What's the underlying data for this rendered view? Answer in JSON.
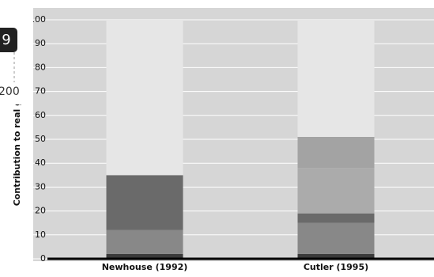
{
  "chart_data": {
    "type": "stacked-bar",
    "ylabel": "Contribution to real growth",
    "categories": [
      "Newhouse (1992)",
      "Cutler (1995)"
    ],
    "series": [
      {
        "color": "#3a3a3a",
        "values": [
          2,
          2
        ]
      },
      {
        "color": "#888888",
        "values": [
          10,
          13
        ]
      },
      {
        "color": "#6a6a6a",
        "values": [
          23,
          4
        ]
      },
      {
        "color": "#ababab",
        "values": [
          0,
          19
        ]
      },
      {
        "color": "#a3a3a3",
        "values": [
          0,
          13
        ]
      },
      {
        "color": "#e6e6e6",
        "values": [
          65,
          49
        ]
      }
    ],
    "ylim": [
      0,
      100
    ],
    "yticks": [
      0,
      10,
      20,
      30,
      40,
      50,
      60,
      70,
      80,
      90,
      100
    ],
    "grid": true
  },
  "overlay": {
    "badge": "9",
    "label": "200"
  }
}
